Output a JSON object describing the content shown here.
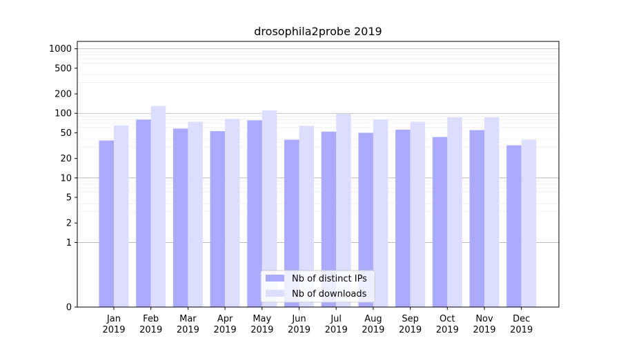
{
  "chart_data": {
    "type": "bar",
    "title": "drosophila2probe 2019",
    "xlabel": "",
    "ylabel": "",
    "yscale": "symlog",
    "ylim": [
      0,
      1300
    ],
    "yticks": [
      0,
      1,
      2,
      5,
      10,
      20,
      50,
      100,
      200,
      500,
      1000
    ],
    "categories": [
      "Jan\n2019",
      "Feb\n2019",
      "Mar\n2019",
      "Apr\n2019",
      "May\n2019",
      "Jun\n2019",
      "Jul\n2019",
      "Aug\n2019",
      "Sep\n2019",
      "Oct\n2019",
      "Nov\n2019",
      "Dec\n2019"
    ],
    "series": [
      {
        "name": "Nb of distinct IPs",
        "color": "#aaaaff",
        "values": [
          38,
          80,
          58,
          53,
          78,
          39,
          52,
          50,
          56,
          43,
          55,
          32
        ]
      },
      {
        "name": "Nb of downloads",
        "color": "#ddddff",
        "values": [
          65,
          130,
          74,
          82,
          111,
          64,
          98,
          80,
          74,
          87,
          87,
          39
        ]
      }
    ],
    "grid": true,
    "legend_position": "bottom-center"
  }
}
